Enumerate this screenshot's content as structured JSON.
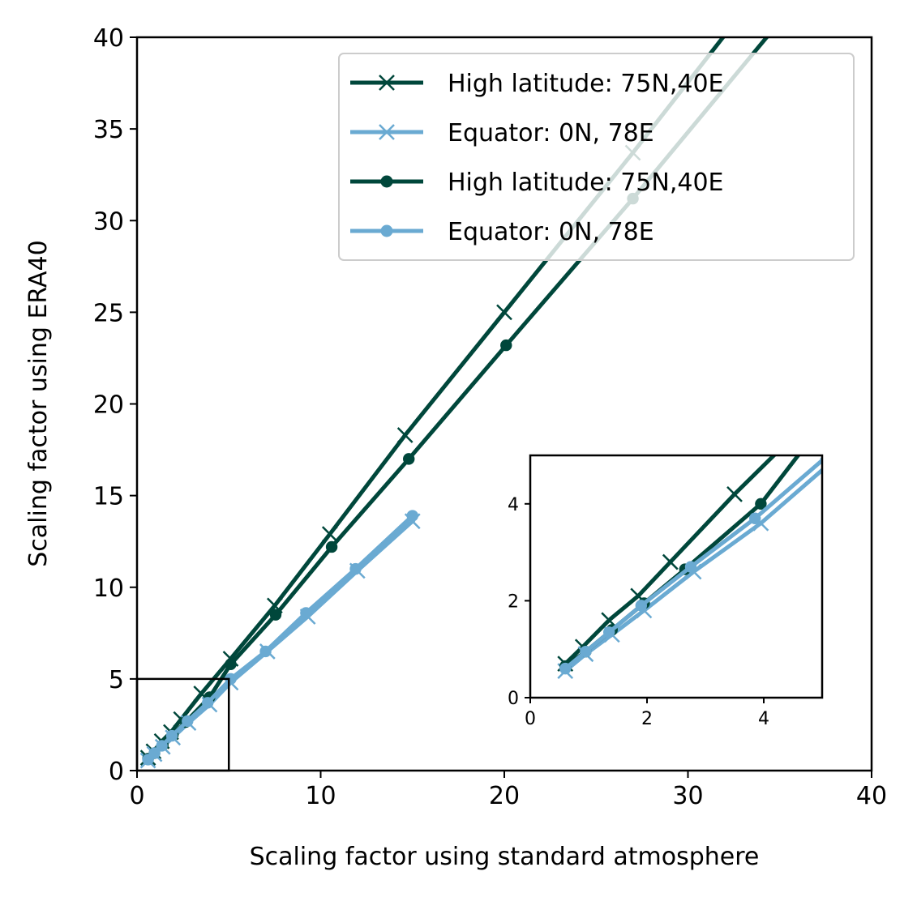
{
  "colors": {
    "dark": "#00473b",
    "light": "#6aaad2",
    "axis": "#000000"
  },
  "chart_data": {
    "type": "line",
    "title": "",
    "xlabel": "Scaling factor using standard atmosphere",
    "ylabel": "Scaling factor using ERA40",
    "xlim": [
      0,
      40
    ],
    "ylim": [
      0,
      40
    ],
    "xticks": [
      "0",
      "10",
      "20",
      "30",
      "40"
    ],
    "yticks": [
      "0",
      "5",
      "10",
      "15",
      "20",
      "25",
      "30",
      "35",
      "40"
    ],
    "grid": false,
    "legend_position": "top-right",
    "zoom_box": {
      "x": [
        0,
        5
      ],
      "y": [
        0,
        5
      ]
    },
    "series": [
      {
        "name": "High latitude: 75N,40E",
        "marker": "x",
        "color": "#00473b",
        "points": [
          [
            0.6,
            0.7
          ],
          [
            0.9,
            1.05
          ],
          [
            1.35,
            1.6
          ],
          [
            1.85,
            2.1
          ],
          [
            2.4,
            2.8
          ],
          [
            3.5,
            4.2
          ],
          [
            5.1,
            6.1
          ],
          [
            7.5,
            9.0
          ],
          [
            10.5,
            12.9
          ],
          [
            14.6,
            18.3
          ],
          [
            20.0,
            25.0
          ],
          [
            27.0,
            33.7
          ],
          [
            32.3,
            40.5
          ]
        ]
      },
      {
        "name": "Equator: 0N, 78E",
        "marker": "x",
        "color": "#6aaad2",
        "points": [
          [
            0.6,
            0.55
          ],
          [
            0.95,
            0.9
          ],
          [
            1.4,
            1.3
          ],
          [
            1.95,
            1.8
          ],
          [
            2.8,
            2.6
          ],
          [
            3.95,
            3.6
          ],
          [
            5.1,
            4.8
          ],
          [
            7.1,
            6.5
          ],
          [
            9.3,
            8.4
          ],
          [
            12.0,
            10.9
          ],
          [
            15.0,
            13.6
          ]
        ]
      },
      {
        "name": "High latitude: 75N,40E",
        "marker": "o",
        "color": "#00473b",
        "points": [
          [
            0.6,
            0.65
          ],
          [
            0.95,
            0.95
          ],
          [
            1.4,
            1.4
          ],
          [
            1.95,
            1.95
          ],
          [
            2.65,
            2.65
          ],
          [
            3.95,
            4.0
          ],
          [
            5.1,
            5.8
          ],
          [
            7.55,
            8.5
          ],
          [
            10.6,
            12.2
          ],
          [
            14.8,
            17.0
          ],
          [
            20.1,
            23.2
          ],
          [
            27.0,
            31.2
          ],
          [
            34.7,
            40.5
          ]
        ]
      },
      {
        "name": "Equator: 0N, 78E",
        "marker": "o",
        "color": "#6aaad2",
        "points": [
          [
            0.6,
            0.6
          ],
          [
            0.95,
            0.95
          ],
          [
            1.35,
            1.35
          ],
          [
            1.9,
            1.9
          ],
          [
            2.75,
            2.7
          ],
          [
            3.85,
            3.7
          ],
          [
            5.1,
            5.0
          ],
          [
            7.0,
            6.5
          ],
          [
            9.2,
            8.6
          ],
          [
            11.9,
            11.0
          ],
          [
            15.0,
            13.9
          ]
        ]
      }
    ],
    "inset": {
      "xlim": [
        0,
        5
      ],
      "ylim": [
        0,
        5
      ],
      "xticks": [
        "0",
        "2",
        "4"
      ],
      "yticks": [
        "0",
        "2",
        "4"
      ]
    }
  }
}
